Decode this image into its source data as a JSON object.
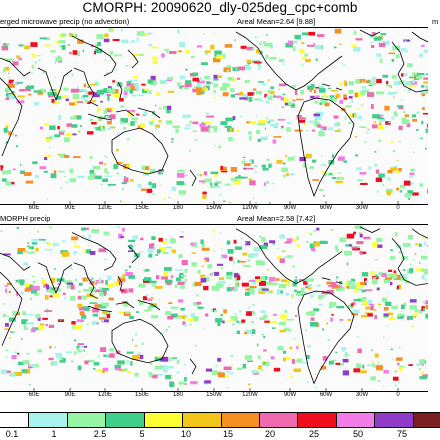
{
  "title": "CMORPH: 20090620_dly-025deg_cpc+comb",
  "panels": [
    {
      "left_label": "erged microwave precip (no advection)",
      "areal_mean": "Areal Mean=2.64 [9.88]",
      "right_label": "m"
    },
    {
      "left_label": "MORPH precip",
      "areal_mean": "Areal Mean=2.58 [7.42]",
      "right_label": ""
    }
  ],
  "longitude_ticks": [
    "60E",
    "90E",
    "120E",
    "150E",
    "180",
    "150W",
    "120W",
    "90W",
    "60W",
    "30W",
    "0"
  ],
  "legend": {
    "colors": [
      "#ffffff",
      "#a8f2ee",
      "#94f5a4",
      "#3fcf8a",
      "#ffff33",
      "#f2c619",
      "#f58f23",
      "#ef6ab1",
      "#ee0e1e",
      "#f47ce8",
      "#8e3cc8",
      "#7a1e22"
    ],
    "labels": [
      "0.1",
      "1",
      "2.5",
      "5",
      "10",
      "15",
      "20",
      "25",
      "50",
      "75"
    ]
  },
  "map_colors": {
    "ocean": "#fbfbfb",
    "coast": "#000000"
  }
}
